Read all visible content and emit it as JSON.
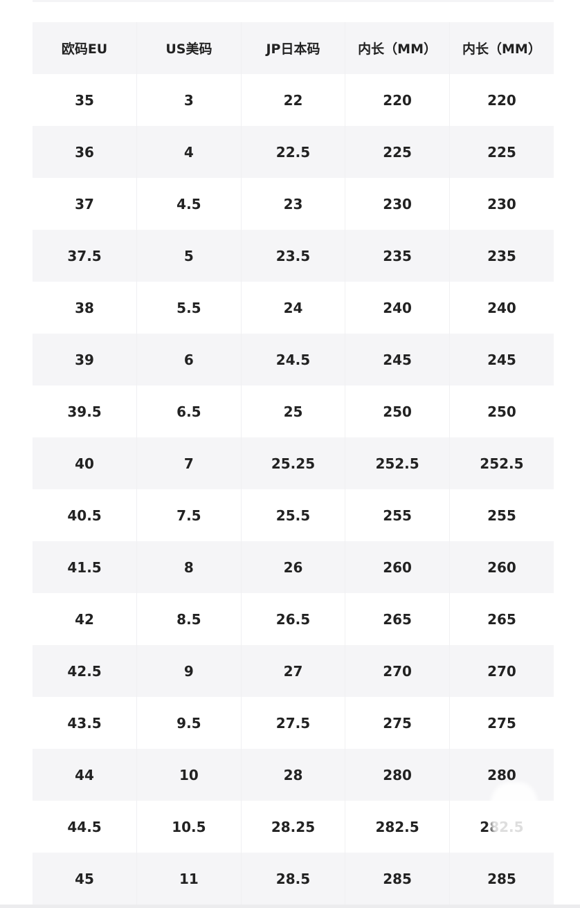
{
  "table": {
    "headers": [
      "欧码EU",
      "US美码",
      "JP日本码",
      "内长（MM）",
      "内长（MM）"
    ],
    "rows": [
      [
        "35",
        "3",
        "22",
        "220",
        "220"
      ],
      [
        "36",
        "4",
        "22.5",
        "225",
        "225"
      ],
      [
        "37",
        "4.5",
        "23",
        "230",
        "230"
      ],
      [
        "37.5",
        "5",
        "23.5",
        "235",
        "235"
      ],
      [
        "38",
        "5.5",
        "24",
        "240",
        "240"
      ],
      [
        "39",
        "6",
        "24.5",
        "245",
        "245"
      ],
      [
        "39.5",
        "6.5",
        "25",
        "250",
        "250"
      ],
      [
        "40",
        "7",
        "25.25",
        "252.5",
        "252.5"
      ],
      [
        "40.5",
        "7.5",
        "25.5",
        "255",
        "255"
      ],
      [
        "41.5",
        "8",
        "26",
        "260",
        "260"
      ],
      [
        "42",
        "8.5",
        "26.5",
        "265",
        "265"
      ],
      [
        "42.5",
        "9",
        "27",
        "270",
        "270"
      ],
      [
        "43.5",
        "9.5",
        "27.5",
        "275",
        "275"
      ],
      [
        "44",
        "10",
        "28",
        "280",
        "280"
      ],
      [
        "44.5",
        "10.5",
        "28.25",
        "282.5",
        "282.5"
      ],
      [
        "45",
        "11",
        "28.5",
        "285",
        "285"
      ]
    ]
  },
  "colors": {
    "header_bg": "#f5f5f7",
    "stripe_bg": "#f5f5f7",
    "text": "#222222"
  }
}
